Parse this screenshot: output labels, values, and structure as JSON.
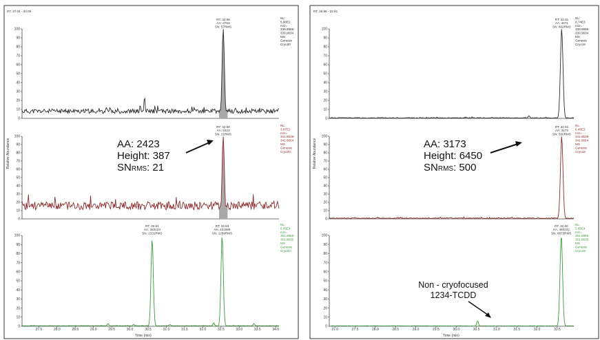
{
  "panels": [
    {
      "rt_range": "RT: 27.04 - 34.09",
      "x_axis_label": "Time (min)",
      "x_ticks": [
        27.5,
        28.0,
        28.5,
        29.0,
        29.5,
        30.0,
        30.5,
        31.0,
        31.5,
        32.0,
        32.5,
        33.0,
        33.5,
        34.0
      ],
      "xlim": [
        27.04,
        34.09
      ],
      "y_axis_label": "Relative Abundance",
      "annotation": {
        "aa": "AA: 2423",
        "height": "Height: 387",
        "sn_prefix": "SN",
        "sn_sub": "RMS",
        "sn_value": ": 21"
      },
      "chart_data": [
        {
          "type": "line",
          "color": "#2a2a2a",
          "ylim": [
            0,
            100
          ],
          "y_ticks": [
            0,
            10,
            20,
            30,
            40,
            50,
            60,
            70,
            80,
            90,
            100
          ],
          "info": [
            "NL:",
            "5.90E2",
            "m/z=",
            "339.8586-",
            "339.9634",
            "MS",
            "Genesis",
            "Cryo20"
          ],
          "peaks": [
            {
              "rt": 32.56,
              "height": 100,
              "label": [
                "RT: 32.56",
                "AA: 3763",
                "SN: 57RMS"
              ],
              "filled": true
            },
            {
              "rt": 30.4,
              "height": 24,
              "filled": false
            },
            {
              "rt": 30.28,
              "height": 15,
              "filled": false
            }
          ],
          "baseline": 8,
          "noise": 2.5,
          "seed": 11
        },
        {
          "type": "line",
          "color": "#8b2a2a",
          "ylim": [
            0,
            100
          ],
          "y_ticks": [
            0,
            10,
            20,
            30,
            40,
            50,
            60,
            70,
            80,
            90,
            100
          ],
          "info": [
            "NL:",
            "3.87E2",
            "m/z=",
            "341.8538-",
            "341.8654",
            "MS",
            "Genesis",
            "Cryo20"
          ],
          "peaks": [
            {
              "rt": 32.56,
              "height": 100,
              "label": [
                "RT: 32.56",
                "AA: 2423",
                "SN: 21RMS"
              ],
              "filled": true
            }
          ],
          "baseline": 16,
          "noise": 5,
          "seed": 23
        },
        {
          "type": "line",
          "color": "#3a9a3a",
          "ylim": [
            0,
            100
          ],
          "y_ticks": [
            0,
            10,
            20,
            30,
            40,
            50,
            60,
            70,
            80,
            90,
            100
          ],
          "info": [
            "NL:",
            "6.05E4",
            "m/z=",
            "351.8965-",
            "351.8635",
            "MS",
            "Genesis",
            "Cryo20"
          ],
          "peaks": [
            {
              "rt": 30.61,
              "height": 96,
              "label": [
                "RT: 30.61",
                "AA: 363123",
                "SN: 1331RMS"
              ],
              "filled": false
            },
            {
              "rt": 32.53,
              "height": 100,
              "label": [
                "RT: 32.53",
                "AA: 421989",
                "SN: 1269RMS"
              ],
              "filled": false
            },
            {
              "rt": 29.4,
              "height": 3,
              "filled": false
            },
            {
              "rt": 30.1,
              "height": 2,
              "filled": false
            },
            {
              "rt": 31.1,
              "height": 2,
              "filled": false
            },
            {
              "rt": 32.3,
              "height": 4,
              "filled": false
            },
            {
              "rt": 33.4,
              "height": 3,
              "filled": false
            }
          ],
          "baseline": 0.5,
          "noise": 0.2,
          "seed": 5
        }
      ]
    },
    {
      "rt_range": "RT: 26.86 - 32.91",
      "x_axis_label": "Time (min)",
      "x_ticks": [
        27.0,
        27.5,
        28.0,
        28.5,
        29.0,
        29.5,
        30.0,
        30.5,
        31.0,
        31.5,
        32.0,
        32.5
      ],
      "xlim": [
        26.86,
        32.91
      ],
      "y_axis_label": "Relative Abundance",
      "annotation": {
        "aa": "AA: 3173",
        "height": "Height: 6450",
        "sn_prefix": "SN",
        "sn_sub": "RMS",
        "sn_value": ": 500"
      },
      "annotation2": {
        "line1": "Non - cryofocused",
        "line2": "1234-TCDD"
      },
      "chart_data": [
        {
          "type": "line",
          "color": "#2a2a2a",
          "ylim": [
            0,
            100
          ],
          "y_ticks": [
            0,
            10,
            20,
            30,
            40,
            50,
            60,
            70,
            80,
            90,
            100
          ],
          "info": [
            "NL:",
            "8.74E3",
            "m/z=",
            "339.8586-",
            "339.9634",
            "MS",
            "Genesis",
            "Cryo19"
          ],
          "peaks": [
            {
              "rt": 32.61,
              "height": 100,
              "label": [
                "RT: 32.61",
                "AA: 4071",
                "SN: 662RMS"
              ],
              "filled": false
            },
            {
              "rt": 31.8,
              "height": 3,
              "filled": false
            }
          ],
          "baseline": 0.5,
          "noise": 0.4,
          "seed": 31
        },
        {
          "type": "line",
          "color": "#8b2a2a",
          "ylim": [
            0,
            100
          ],
          "y_ticks": [
            0,
            10,
            20,
            30,
            40,
            50,
            60,
            70,
            80,
            90,
            100
          ],
          "info": [
            "NL:",
            "6.45E3",
            "m/z=",
            "341.8538-",
            "341.8654",
            "MS",
            "Genesis",
            "Cryo19"
          ],
          "peaks": [
            {
              "rt": 32.61,
              "height": 100,
              "label": [
                "RT: 32.61",
                "AA: 3173",
                "SN: 500RMS"
              ],
              "filled": false
            }
          ],
          "baseline": 0.8,
          "noise": 0.5,
          "seed": 41
        },
        {
          "type": "line",
          "color": "#3a9a3a",
          "ylim": [
            0,
            100
          ],
          "y_ticks": [
            0,
            10,
            20,
            30,
            40,
            50,
            60,
            70,
            80,
            90,
            100
          ],
          "info": [
            "NL:",
            "5.85E4",
            "m/z=",
            "351.8965-",
            "351.8635",
            "MS",
            "Genesis",
            "Cryo19"
          ],
          "peaks": [
            {
              "rt": 32.6,
              "height": 100,
              "label": [
                "RT: 32.60",
                "AA: 460422",
                "SN: 8673RMS"
              ],
              "filled": false
            },
            {
              "rt": 30.53,
              "height": 6,
              "filled": false
            }
          ],
          "baseline": 0.3,
          "noise": 0.15,
          "seed": 51
        }
      ]
    }
  ]
}
